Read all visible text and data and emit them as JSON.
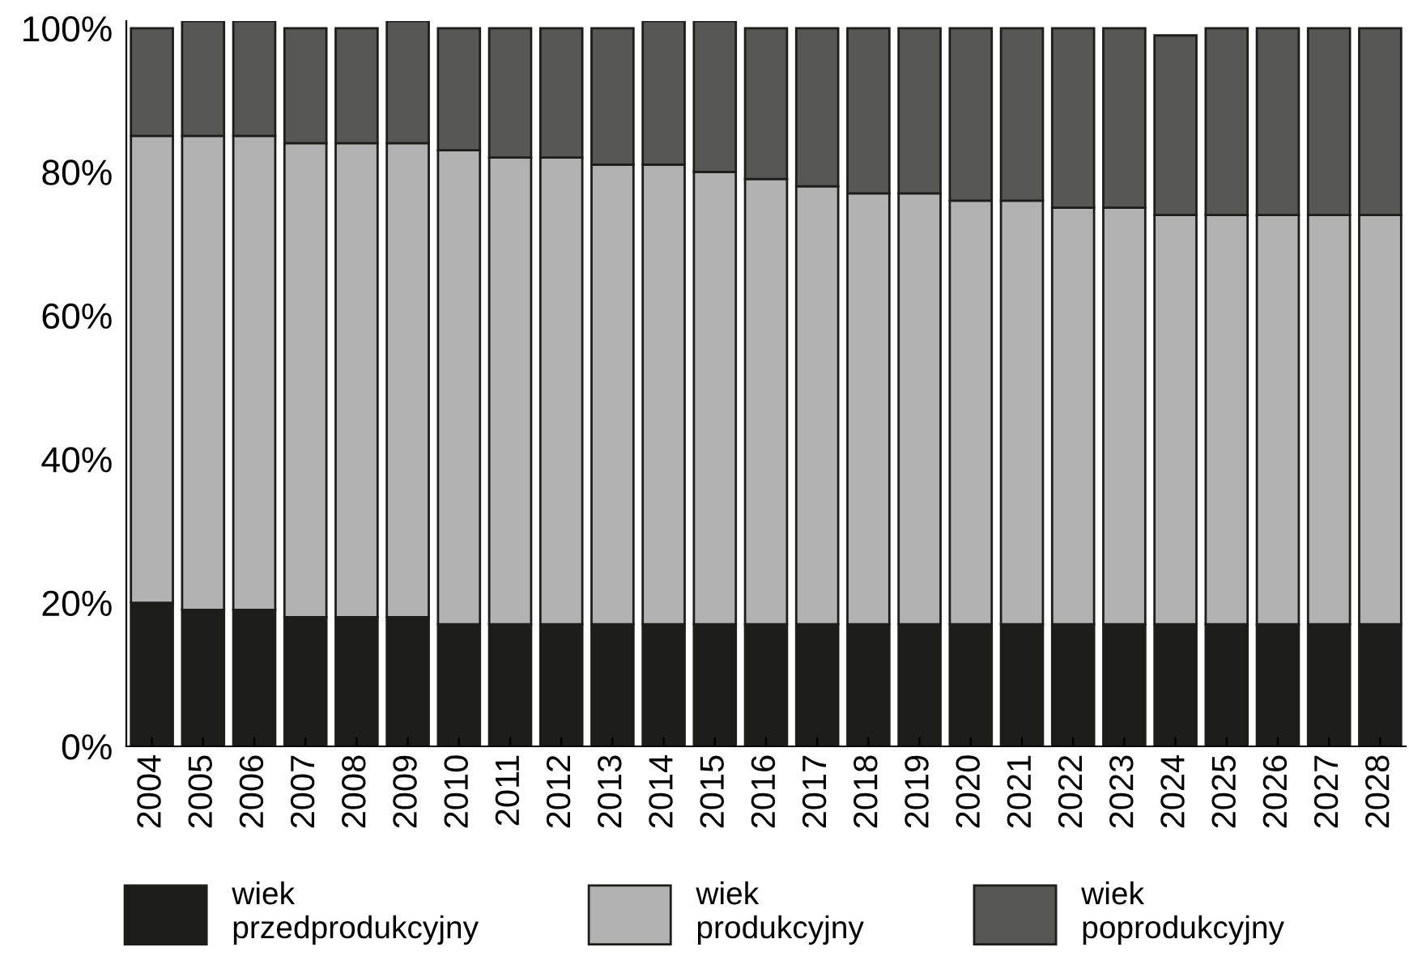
{
  "chart_data": {
    "type": "bar",
    "stacked": true,
    "categories": [
      "2004",
      "2005",
      "2006",
      "2007",
      "2008",
      "2009",
      "2010",
      "2011",
      "2012",
      "2013",
      "2014",
      "2015",
      "2016",
      "2017",
      "2018",
      "2019",
      "2020",
      "2021",
      "2022",
      "2023",
      "2024",
      "2025",
      "2026",
      "2027",
      "2028"
    ],
    "series": [
      {
        "name": "wiek\nprzedprodukcyjny",
        "color": "#1d1d1b",
        "values": [
          20,
          19,
          19,
          18,
          18,
          18,
          17,
          17,
          17,
          17,
          17,
          17,
          17,
          17,
          17,
          17,
          17,
          17,
          17,
          17,
          17,
          17,
          17,
          17,
          17
        ]
      },
      {
        "name": "wiek\nprodukcyjny",
        "color": "#b2b2b2",
        "values": [
          65,
          66,
          66,
          66,
          66,
          66,
          66,
          65,
          65,
          64,
          64,
          63,
          62,
          61,
          60,
          60,
          59,
          59,
          58,
          58,
          57,
          57,
          57,
          57,
          57
        ]
      },
      {
        "name": "wiek\npoprodukcyjny",
        "color": "#575756",
        "values": [
          15,
          16,
          16,
          16,
          16,
          17,
          17,
          18,
          18,
          19,
          20,
          21,
          21,
          22,
          23,
          23,
          24,
          24,
          25,
          25,
          25,
          26,
          26,
          26,
          26
        ]
      }
    ],
    "ylim": [
      0,
      101
    ],
    "yticks": [
      {
        "value": 0,
        "label": "0%"
      },
      {
        "value": 20,
        "label": "20%"
      },
      {
        "value": 40,
        "label": "40%"
      },
      {
        "value": 60,
        "label": "60%"
      },
      {
        "value": 80,
        "label": "80%"
      },
      {
        "value": 100,
        "label": "100%"
      }
    ],
    "grid": false,
    "legend": "bottom"
  }
}
